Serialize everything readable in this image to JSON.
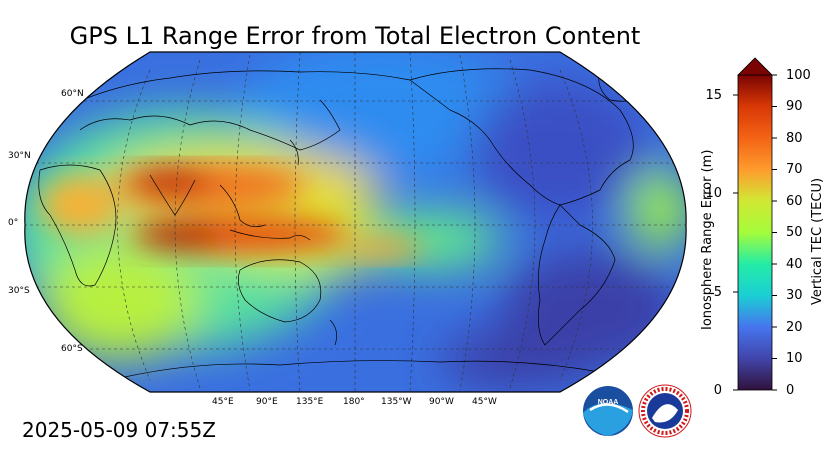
{
  "title": "GPS L1 Range Error from Total Electron Content",
  "timestamp": "2025-05-09 07:55Z",
  "lat_labels": [
    "60°N",
    "30°N",
    "0°",
    "30°S",
    "60°S"
  ],
  "lon_labels": [
    "45°E",
    "90°E",
    "135°E",
    "180°",
    "135°W",
    "90°W",
    "45°W"
  ],
  "colorbar": {
    "left_label": "Ionosphere Range Error (m)",
    "right_label": "Vertical TEC (TECU)",
    "left_ticks": [
      "0",
      "5",
      "10",
      "15"
    ],
    "right_ticks": [
      "0",
      "10",
      "20",
      "30",
      "40",
      "50",
      "60",
      "70",
      "80",
      "90",
      "100"
    ],
    "colors": [
      "#30123b",
      "#4145ab",
      "#4675ed",
      "#39a2fc",
      "#1bcfd4",
      "#24eca6",
      "#61fc6c",
      "#a4fc3b",
      "#d1e834",
      "#f3c63a",
      "#fe9b2d",
      "#f36315",
      "#d93806",
      "#b11901",
      "#7a0403"
    ]
  },
  "logos": {
    "noaa": "NOAA",
    "nws": "NATIONAL WEATHER SERVICE"
  }
}
